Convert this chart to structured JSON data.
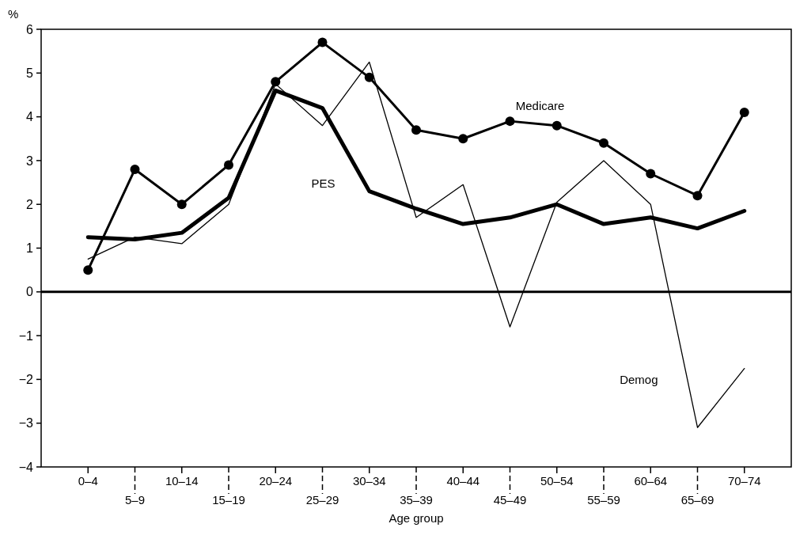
{
  "chart_data": {
    "type": "line",
    "xlabel": "Age group",
    "ylabel": "%",
    "categories": [
      "0–4",
      "5–9",
      "10–14",
      "15–19",
      "20–24",
      "25–29",
      "30–34",
      "35–39",
      "40–44",
      "45–49",
      "50–54",
      "55–59",
      "60–64",
      "65–69",
      "70–74"
    ],
    "series": [
      {
        "name": "Medicare",
        "color": "#000000",
        "marker": "circle",
        "values": [
          0.5,
          2.8,
          2.0,
          2.9,
          4.8,
          5.7,
          4.9,
          3.7,
          3.5,
          3.9,
          3.8,
          3.4,
          2.7,
          2.2,
          4.1
        ]
      },
      {
        "name": "PES",
        "color": "#000000",
        "marker": "none",
        "values": [
          1.25,
          1.2,
          1.35,
          2.15,
          4.6,
          4.2,
          2.3,
          1.9,
          1.55,
          1.7,
          2.0,
          1.55,
          1.7,
          1.45,
          1.85
        ]
      },
      {
        "name": "Demog",
        "color": "#000000",
        "marker": "none",
        "values": [
          0.75,
          1.25,
          1.1,
          2.0,
          4.75,
          3.8,
          5.25,
          1.7,
          2.45,
          -0.8,
          2.05,
          3.0,
          2.0,
          -3.1,
          -1.75
        ]
      }
    ],
    "ylim": [
      -4,
      6
    ],
    "yticks": [
      -4,
      -3,
      -2,
      -1,
      0,
      1,
      2,
      3,
      4,
      5,
      6
    ],
    "ref_lines": [
      {
        "axis": "y",
        "value": 0,
        "color": "#000000"
      }
    ],
    "grid": false,
    "line_style": "solid"
  }
}
